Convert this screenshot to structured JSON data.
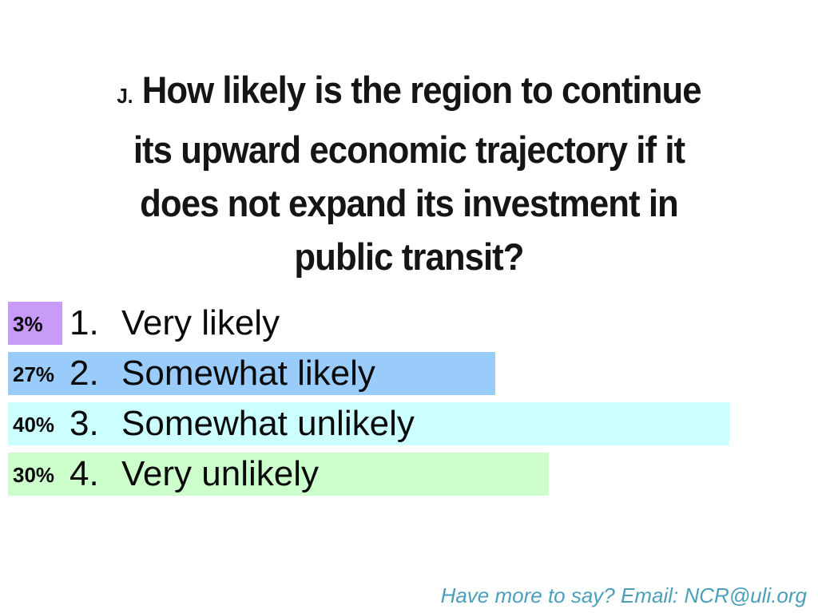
{
  "slide": {
    "title": {
      "prefix": "J.",
      "lines": [
        "How likely is the region to continue",
        "its upward economic trajectory if it",
        "does not expand its investment in",
        "public transit?"
      ]
    },
    "options": [
      {
        "number": "1.",
        "label": "Very likely",
        "percent": "3%",
        "value": 3,
        "color": "#C99BF8"
      },
      {
        "number": "2.",
        "label": "Somewhat likely",
        "percent": "27%",
        "value": 27,
        "color": "#99CCFA"
      },
      {
        "number": "3.",
        "label": "Somewhat unlikely",
        "percent": "40%",
        "value": 40,
        "color": "#CCFFFF"
      },
      {
        "number": "4.",
        "label": "Very unlikely",
        "percent": "30%",
        "value": 30,
        "color": "#CCFFCC"
      }
    ],
    "footer": "Have more to say? Email: NCR@uli.org",
    "colors": {
      "background": "#ffffff",
      "title_text": "#151515",
      "body_text": "#0a0a0a",
      "footer_text": "#4B9FBB"
    }
  },
  "chart_data": {
    "type": "bar",
    "orientation": "horizontal",
    "title": "J. How likely is the region to continue its upward economic trajectory if it does not expand its investment in public transit?",
    "categories": [
      "Very likely",
      "Somewhat likely",
      "Somewhat unlikely",
      "Very unlikely"
    ],
    "values": [
      3,
      27,
      40,
      30
    ],
    "value_labels": [
      "3%",
      "27%",
      "40%",
      "30%"
    ],
    "bar_colors": [
      "#C99BF8",
      "#99CCFA",
      "#CCFFFF",
      "#CCFFCC"
    ],
    "xlabel": "",
    "ylabel": "",
    "xlim": [
      0,
      45
    ],
    "grid": false,
    "legend": false,
    "value_label_position": "inside-left",
    "unit": "percent"
  }
}
